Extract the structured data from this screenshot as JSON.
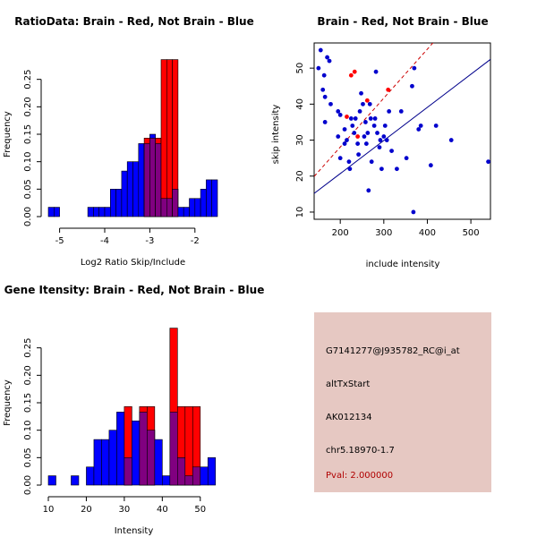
{
  "chart_data": [
    {
      "id": "ratio",
      "type": "histogram",
      "title": "RatioData: Brain - Red, Not Brain - Blue",
      "xlabel": "Log2 Ratio Skip/Include",
      "ylabel": "Frequency",
      "xlim": [
        -5.25,
        -1.5
      ],
      "ylim": [
        0,
        0.3
      ],
      "xticks": [
        -5,
        -4,
        -3,
        -2
      ],
      "yticks": [
        0.0,
        0.05,
        0.1,
        0.15,
        0.2,
        0.25
      ],
      "bin_width": 0.125,
      "bins_start": [
        -5.25,
        -5.125,
        -5.0,
        -4.875,
        -4.75,
        -4.625,
        -4.5,
        -4.375,
        -4.25,
        -4.125,
        -4.0,
        -3.875,
        -3.75,
        -3.625,
        -3.5,
        -3.375,
        -3.25,
        -3.125,
        -3.0,
        -2.875,
        -2.75,
        -2.625,
        -2.5,
        -2.375,
        -2.25,
        -2.125,
        -2.0,
        -1.875,
        -1.75,
        -1.625
      ],
      "series": [
        {
          "name": "Brain",
          "color": "#ff0000",
          "values": [
            0,
            0,
            0,
            0,
            0,
            0,
            0,
            0,
            0,
            0,
            0,
            0,
            0,
            0,
            0,
            0,
            0,
            0.143,
            0.143,
            0.143,
            0.286,
            0.286,
            0.286,
            0,
            0,
            0,
            0,
            0,
            0,
            0
          ]
        },
        {
          "name": "Not Brain",
          "color": "#0000ff",
          "values": [
            0.017,
            0.017,
            0,
            0,
            0,
            0,
            0,
            0.017,
            0.017,
            0.017,
            0.017,
            0.05,
            0.05,
            0.083,
            0.1,
            0.1,
            0.133,
            0.133,
            0.15,
            0.133,
            0.033,
            0.033,
            0.05,
            0.017,
            0.017,
            0.033,
            0.033,
            0.05,
            0.067,
            0.067
          ]
        }
      ]
    },
    {
      "id": "scatter",
      "type": "scatter",
      "title": "Brain - Red, Not Brain - Blue",
      "xlabel": "include intensity",
      "ylabel": "skip intensity",
      "xlim": [
        140,
        545
      ],
      "ylim": [
        8,
        57
      ],
      "xticks": [
        200,
        300,
        400,
        500
      ],
      "yticks": [
        10,
        20,
        30,
        40,
        50
      ],
      "brain_points": [
        [
          225,
          48
        ],
        [
          233,
          49
        ],
        [
          215,
          36.5
        ],
        [
          240,
          31
        ],
        [
          262,
          41
        ],
        [
          310,
          44
        ]
      ],
      "not_brain_points": [
        [
          150,
          50
        ],
        [
          155,
          55
        ],
        [
          160,
          44
        ],
        [
          163,
          48
        ],
        [
          165,
          42
        ],
        [
          165,
          35
        ],
        [
          170,
          53
        ],
        [
          175,
          52
        ],
        [
          178,
          40
        ],
        [
          195,
          38
        ],
        [
          195,
          31
        ],
        [
          200,
          37
        ],
        [
          200,
          25
        ],
        [
          210,
          33
        ],
        [
          210,
          29
        ],
        [
          215,
          30
        ],
        [
          220,
          24
        ],
        [
          222,
          22
        ],
        [
          225,
          36
        ],
        [
          228,
          34
        ],
        [
          232,
          32
        ],
        [
          235,
          36
        ],
        [
          240,
          29
        ],
        [
          242,
          26
        ],
        [
          245,
          38
        ],
        [
          248,
          43
        ],
        [
          252,
          40
        ],
        [
          255,
          31
        ],
        [
          258,
          35
        ],
        [
          260,
          29
        ],
        [
          263,
          32
        ],
        [
          265,
          16
        ],
        [
          268,
          40
        ],
        [
          270,
          36
        ],
        [
          272,
          24
        ],
        [
          278,
          34
        ],
        [
          280,
          36
        ],
        [
          282,
          49
        ],
        [
          285,
          32
        ],
        [
          290,
          28
        ],
        [
          292,
          30
        ],
        [
          295,
          22
        ],
        [
          300,
          31
        ],
        [
          303,
          34
        ],
        [
          307,
          30
        ],
        [
          312,
          38
        ],
        [
          318,
          27
        ],
        [
          330,
          22
        ],
        [
          340,
          38
        ],
        [
          352,
          25
        ],
        [
          365,
          45
        ],
        [
          370,
          50
        ],
        [
          368,
          10
        ],
        [
          380,
          33
        ],
        [
          385,
          34
        ],
        [
          408,
          23
        ],
        [
          420,
          34
        ],
        [
          455,
          30
        ],
        [
          540,
          24
        ]
      ],
      "brain_fit": {
        "slope": 0.136,
        "intercept": 0.87
      },
      "not_brain_fit": {
        "slope": 0.092,
        "intercept": 2.3
      }
    },
    {
      "id": "gene",
      "type": "histogram",
      "title": "Gene Itensity: Brain - Red, Not Brain - Blue",
      "xlabel": "Intensity",
      "ylabel": "Frequency",
      "xlim": [
        10,
        55
      ],
      "ylim": [
        0,
        0.3
      ],
      "xticks": [
        10,
        20,
        30,
        40,
        50
      ],
      "yticks": [
        0.0,
        0.05,
        0.1,
        0.15,
        0.2,
        0.25
      ],
      "bin_width": 2,
      "bins_start": [
        10,
        12,
        14,
        16,
        18,
        20,
        22,
        24,
        26,
        28,
        30,
        32,
        34,
        36,
        38,
        40,
        42,
        44,
        46,
        48,
        50,
        52
      ],
      "series": [
        {
          "name": "Brain",
          "color": "#ff0000",
          "values": [
            0,
            0,
            0,
            0,
            0,
            0,
            0,
            0,
            0,
            0,
            0.143,
            0,
            0.143,
            0.143,
            0,
            0,
            0.286,
            0.143,
            0.143,
            0.143,
            0,
            0
          ]
        },
        {
          "name": "Not Brain",
          "color": "#0000ff",
          "values": [
            0.017,
            0,
            0,
            0.017,
            0,
            0.033,
            0.083,
            0.083,
            0.1,
            0.133,
            0.05,
            0.117,
            0.133,
            0.1,
            0.083,
            0.017,
            0.133,
            0.05,
            0.017,
            0.033,
            0.033,
            0.05
          ]
        }
      ]
    }
  ],
  "info": {
    "probe_id": "G7141277@J935782_RC@i_at",
    "event_type": "altTxStart",
    "accession": "AK012134",
    "location": "chr5.18970-1.7",
    "pval": "Pval: 2.000000"
  }
}
